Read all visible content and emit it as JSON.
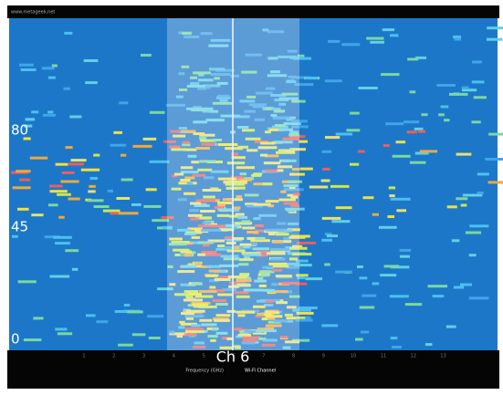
{
  "header": {
    "url": "www.metageek.net"
  },
  "axis": {
    "labels": [
      "80",
      "45",
      "0"
    ]
  },
  "selection": {
    "label": "Ch 6"
  },
  "channels": [
    "1",
    "2",
    "3",
    "4",
    "5",
    "6",
    "7",
    "8",
    "9",
    "10",
    "11",
    "12",
    "13"
  ],
  "footer": {
    "frequency_label": "Frequency (GHz)",
    "channel_label": "Wi-Fi Channel"
  }
}
